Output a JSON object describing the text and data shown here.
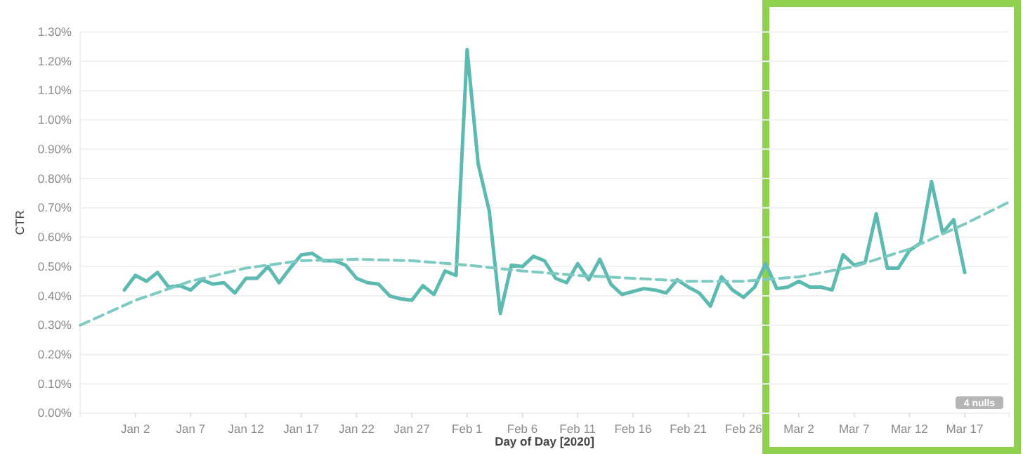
{
  "chart_data": {
    "type": "line",
    "xlabel": "Day of Day [2020]",
    "ylabel": "CTR",
    "x": [
      "2020-01-01",
      "2020-01-02",
      "2020-01-03",
      "2020-01-04",
      "2020-01-05",
      "2020-01-06",
      "2020-01-07",
      "2020-01-08",
      "2020-01-09",
      "2020-01-10",
      "2020-01-11",
      "2020-01-12",
      "2020-01-13",
      "2020-01-14",
      "2020-01-15",
      "2020-01-16",
      "2020-01-17",
      "2020-01-18",
      "2020-01-19",
      "2020-01-20",
      "2020-01-21",
      "2020-01-22",
      "2020-01-23",
      "2020-01-24",
      "2020-01-25",
      "2020-01-26",
      "2020-01-27",
      "2020-01-28",
      "2020-01-29",
      "2020-01-30",
      "2020-01-31",
      "2020-02-01",
      "2020-02-02",
      "2020-02-03",
      "2020-02-04",
      "2020-02-05",
      "2020-02-06",
      "2020-02-07",
      "2020-02-08",
      "2020-02-09",
      "2020-02-10",
      "2020-02-11",
      "2020-02-12",
      "2020-02-13",
      "2020-02-14",
      "2020-02-15",
      "2020-02-16",
      "2020-02-17",
      "2020-02-18",
      "2020-02-19",
      "2020-02-20",
      "2020-02-21",
      "2020-02-22",
      "2020-02-23",
      "2020-02-24",
      "2020-02-25",
      "2020-02-26",
      "2020-02-27",
      "2020-02-28",
      "2020-02-29",
      "2020-03-01",
      "2020-03-02",
      "2020-03-03",
      "2020-03-04",
      "2020-03-05",
      "2020-03-06",
      "2020-03-07",
      "2020-03-08",
      "2020-03-09",
      "2020-03-10",
      "2020-03-11",
      "2020-03-12",
      "2020-03-13",
      "2020-03-14",
      "2020-03-15",
      "2020-03-16",
      "2020-03-17"
    ],
    "series": [
      {
        "color": "#5dbab1",
        "line_style": "solid",
        "values": [
          0.42,
          0.47,
          0.45,
          0.48,
          0.43,
          0.435,
          0.42,
          0.455,
          0.44,
          0.445,
          0.41,
          0.46,
          0.46,
          0.5,
          0.445,
          0.495,
          0.54,
          0.545,
          0.52,
          0.52,
          0.505,
          0.46,
          0.445,
          0.44,
          0.4,
          0.39,
          0.385,
          0.435,
          0.405,
          0.485,
          0.47,
          1.24,
          0.85,
          0.69,
          0.34,
          0.505,
          0.5,
          0.535,
          0.52,
          0.46,
          0.445,
          0.51,
          0.455,
          0.525,
          0.44,
          0.405,
          0.415,
          0.425,
          0.42,
          0.41,
          0.455,
          0.43,
          0.41,
          0.365,
          0.465,
          0.42,
          0.395,
          0.43,
          0.51,
          0.425,
          0.43,
          0.45,
          0.43,
          0.43,
          0.42,
          0.54,
          0.505,
          0.515,
          0.68,
          0.495,
          0.495,
          0.555,
          0.58,
          0.79,
          0.615,
          0.66,
          0.48
        ]
      },
      {
        "type": "line",
        "color": "#7ccac2",
        "line_style": "dashed",
        "x": [
          "2019-12-28",
          "2020-01-02",
          "2020-01-07",
          "2020-01-12",
          "2020-01-17",
          "2020-01-22",
          "2020-01-27",
          "2020-02-01",
          "2020-02-06",
          "2020-02-11",
          "2020-02-16",
          "2020-02-21",
          "2020-02-26",
          "2020-03-02",
          "2020-03-07",
          "2020-03-12",
          "2020-03-17",
          "2020-03-21"
        ],
        "values": [
          0.3,
          0.385,
          0.45,
          0.495,
          0.52,
          0.525,
          0.52,
          0.505,
          0.485,
          0.47,
          0.46,
          0.45,
          0.45,
          0.465,
          0.5,
          0.56,
          0.645,
          0.72
        ]
      }
    ],
    "xlim": [
      "2019-12-28",
      "2020-03-21"
    ],
    "xticks": [
      {
        "value": "2020-01-02",
        "label": "Jan 2"
      },
      {
        "value": "2020-01-07",
        "label": "Jan 7"
      },
      {
        "value": "2020-01-12",
        "label": "Jan 12"
      },
      {
        "value": "2020-01-17",
        "label": "Jan 17"
      },
      {
        "value": "2020-01-22",
        "label": "Jan 22"
      },
      {
        "value": "2020-01-27",
        "label": "Jan 27"
      },
      {
        "value": "2020-02-01",
        "label": "Feb 1"
      },
      {
        "value": "2020-02-06",
        "label": "Feb 6"
      },
      {
        "value": "2020-02-11",
        "label": "Feb 11"
      },
      {
        "value": "2020-02-16",
        "label": "Feb 16"
      },
      {
        "value": "2020-02-21",
        "label": "Feb 21"
      },
      {
        "value": "2020-02-26",
        "label": "Feb 26"
      },
      {
        "value": "2020-03-02",
        "label": "Mar 2"
      },
      {
        "value": "2020-03-07",
        "label": "Mar 7"
      },
      {
        "value": "2020-03-12",
        "label": "Mar 12"
      },
      {
        "value": "2020-03-17",
        "label": "Mar 17"
      }
    ],
    "ylim": [
      0,
      1.3
    ],
    "yticks": [
      {
        "value": 0,
        "label": "0.00%"
      },
      {
        "value": 0.1,
        "label": "0.10%"
      },
      {
        "value": 0.2,
        "label": "0.20%"
      },
      {
        "value": 0.3,
        "label": "0.30%"
      },
      {
        "value": 0.4,
        "label": "0.40%"
      },
      {
        "value": 0.5,
        "label": "0.50%"
      },
      {
        "value": 0.6,
        "label": "0.60%"
      },
      {
        "value": 0.7,
        "label": "0.70%"
      },
      {
        "value": 0.8,
        "label": "0.80%"
      },
      {
        "value": 0.9,
        "label": "0.90%"
      },
      {
        "value": 1.0,
        "label": "1.00%"
      },
      {
        "value": 1.1,
        "label": "1.10%"
      },
      {
        "value": 1.2,
        "label": "1.20%"
      },
      {
        "value": 1.3,
        "label": "1.30%"
      }
    ],
    "grid": "y",
    "marker": "none",
    "annotations": [
      "4 nulls"
    ]
  }
}
